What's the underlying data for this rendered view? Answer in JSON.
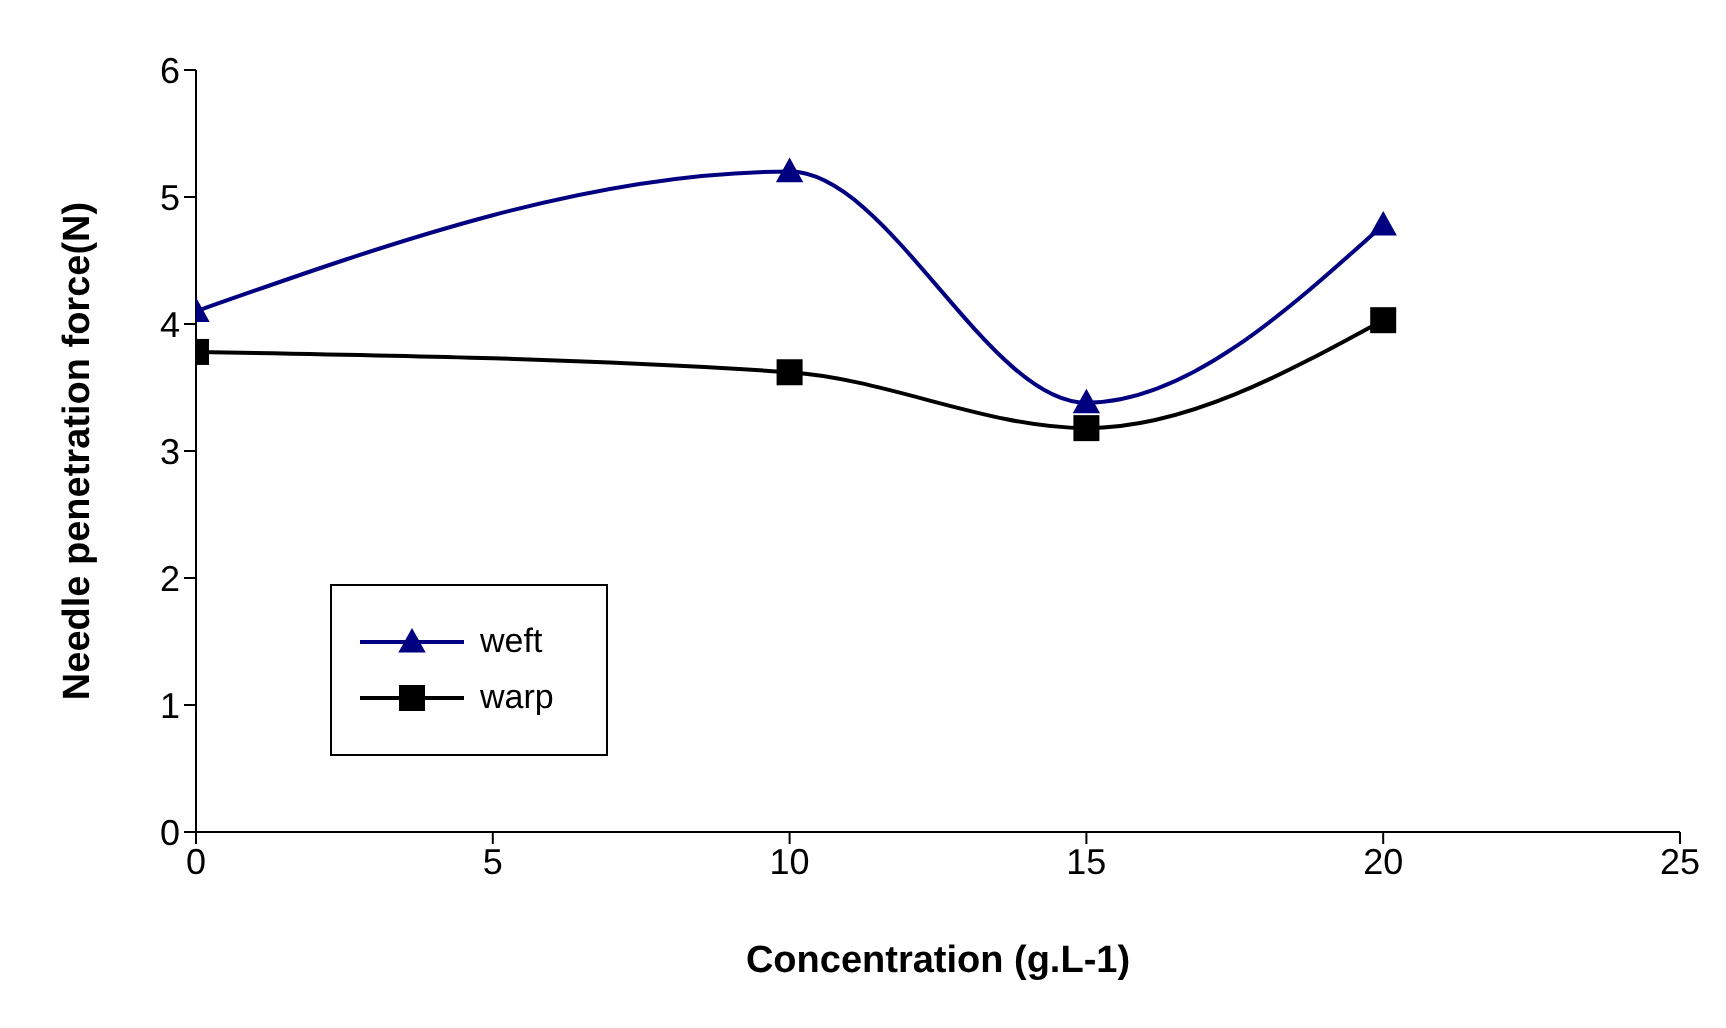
{
  "chart_data": {
    "type": "line",
    "xlabel": "Concentration (g.L-1)",
    "ylabel": "Needle penetration force(N)",
    "x": [
      0,
      10,
      15,
      20
    ],
    "series": [
      {
        "name": "weft",
        "color": "#000080",
        "values": [
          4.1,
          5.2,
          3.38,
          4.78
        ],
        "marker": "triangle"
      },
      {
        "name": "warp",
        "color": "#000000",
        "values": [
          3.78,
          3.62,
          3.18,
          4.03
        ],
        "marker": "square"
      }
    ],
    "xlim": [
      0,
      25
    ],
    "xticks": [
      0,
      5,
      10,
      15,
      20,
      25
    ],
    "ylim": [
      0,
      6
    ],
    "yticks": [
      0,
      1,
      2,
      3,
      4,
      5,
      6
    ],
    "grid": false,
    "legend": "bottom left",
    "line_style": "solid"
  }
}
